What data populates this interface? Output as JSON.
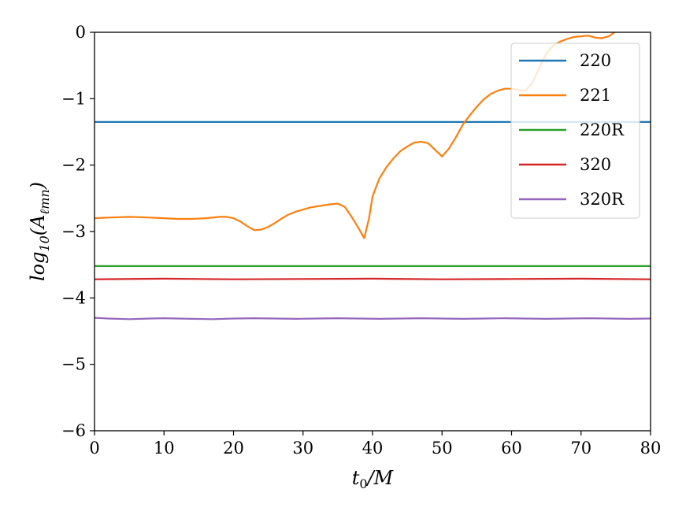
{
  "chart_data": {
    "type": "line",
    "xlabel": "t0/M",
    "xlabel_parts": {
      "t": "t",
      "sub": "0",
      "rest": "/M"
    },
    "ylabel": "log10(Aℓmn)",
    "ylabel_parts": {
      "log": "log",
      "logsub": "10",
      "open": "(",
      "a": "A",
      "asub": "ℓmn",
      "close": ")"
    },
    "xlim": [
      0,
      80
    ],
    "ylim": [
      -6,
      0
    ],
    "xticks": [
      0,
      10,
      20,
      30,
      40,
      50,
      60,
      70,
      80
    ],
    "yticks": [
      0,
      -1,
      -2,
      -3,
      -4,
      -5,
      -6
    ],
    "xtick_labels": [
      "0",
      "10",
      "20",
      "30",
      "40",
      "50",
      "60",
      "70",
      "80"
    ],
    "ytick_labels": [
      "0",
      "−1",
      "−2",
      "−3",
      "−4",
      "−5",
      "−6"
    ],
    "grid": false,
    "legend_position": "top-right",
    "series": [
      {
        "name": "220",
        "color": "#1f77b4",
        "x": [
          0,
          80
        ],
        "y": [
          -1.35,
          -1.35
        ]
      },
      {
        "name": "221",
        "color": "#ff7f0e",
        "x": [
          0,
          2,
          5,
          8,
          10,
          12,
          14,
          16,
          18,
          19,
          20,
          21,
          22,
          23,
          24,
          25,
          26,
          27,
          28,
          29,
          30,
          31,
          32,
          34,
          35,
          36,
          37,
          38,
          38.8,
          39.5,
          40,
          41,
          42,
          43,
          44,
          45,
          46,
          47,
          48,
          49,
          50,
          51,
          52,
          53,
          54,
          55,
          56,
          57,
          58,
          59,
          60,
          61,
          62,
          63,
          64,
          65,
          66,
          67,
          68,
          69,
          70,
          71,
          72,
          73,
          74,
          74.8
        ],
        "y": [
          -2.8,
          -2.79,
          -2.78,
          -2.79,
          -2.8,
          -2.81,
          -2.81,
          -2.8,
          -2.78,
          -2.78,
          -2.8,
          -2.85,
          -2.92,
          -2.98,
          -2.97,
          -2.93,
          -2.87,
          -2.8,
          -2.74,
          -2.7,
          -2.67,
          -2.64,
          -2.62,
          -2.59,
          -2.58,
          -2.63,
          -2.78,
          -2.95,
          -3.1,
          -2.8,
          -2.47,
          -2.2,
          -2.03,
          -1.9,
          -1.79,
          -1.72,
          -1.66,
          -1.65,
          -1.67,
          -1.77,
          -1.87,
          -1.75,
          -1.58,
          -1.39,
          -1.25,
          -1.12,
          -1.01,
          -0.93,
          -0.88,
          -0.85,
          -0.85,
          -0.87,
          -0.88,
          -0.76,
          -0.53,
          -0.32,
          -0.2,
          -0.14,
          -0.1,
          -0.07,
          -0.06,
          -0.05,
          -0.08,
          -0.09,
          -0.06,
          0.0
        ]
      },
      {
        "name": "220R",
        "color": "#2ca02c",
        "x": [
          0,
          80
        ],
        "y": [
          -3.52,
          -3.52
        ]
      },
      {
        "name": "320",
        "color": "#d62728",
        "x": [
          0,
          10,
          20,
          30,
          40,
          50,
          60,
          70,
          80
        ],
        "y": [
          -3.72,
          -3.71,
          -3.72,
          -3.715,
          -3.71,
          -3.72,
          -3.715,
          -3.71,
          -3.72
        ]
      },
      {
        "name": "320R",
        "color": "#9467bd",
        "x": [
          0,
          2,
          5,
          8,
          10,
          12,
          14,
          17,
          20,
          23,
          26,
          29,
          32,
          35,
          38,
          41,
          44,
          47,
          50,
          53,
          56,
          59,
          62,
          65,
          68,
          71,
          74,
          77,
          80
        ],
        "y": [
          -4.3,
          -4.31,
          -4.32,
          -4.31,
          -4.305,
          -4.31,
          -4.315,
          -4.32,
          -4.31,
          -4.305,
          -4.31,
          -4.315,
          -4.31,
          -4.305,
          -4.31,
          -4.315,
          -4.31,
          -4.305,
          -4.31,
          -4.315,
          -4.31,
          -4.305,
          -4.31,
          -4.315,
          -4.31,
          -4.305,
          -4.31,
          -4.315,
          -4.31
        ]
      }
    ]
  }
}
